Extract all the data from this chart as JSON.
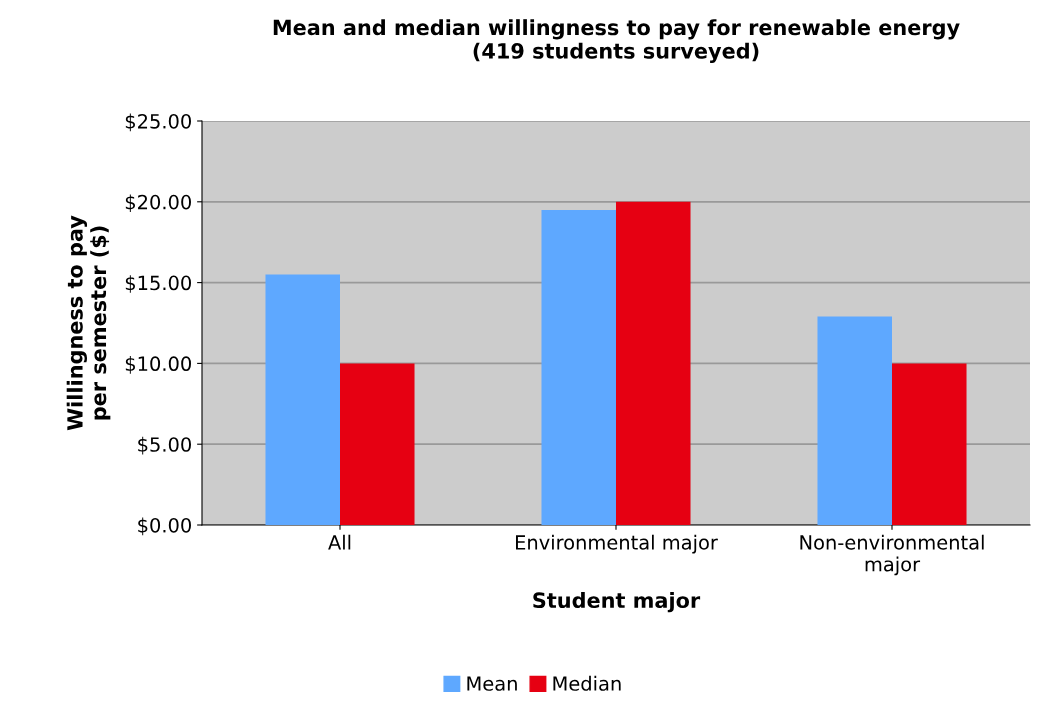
{
  "chart_data": {
    "type": "bar",
    "title": "Mean and median willingness to pay for renewable energy\n(419 students surveyed)",
    "xlabel": "Student major",
    "ylabel": "Willingness to pay\nper semester ($)",
    "categories": [
      "All",
      "Environmental major",
      "Non-environmental\nmajor"
    ],
    "series": [
      {
        "name": "Mean",
        "color": "#5ea8ff",
        "values": [
          15.5,
          19.5,
          12.9
        ]
      },
      {
        "name": "Median",
        "color": "#e60012",
        "values": [
          10,
          20,
          10
        ]
      }
    ],
    "ylim": [
      0,
      25
    ],
    "yticks": [
      {
        "value": 0,
        "label": "$0.00"
      },
      {
        "value": 5,
        "label": "$5.00"
      },
      {
        "value": 10,
        "label": "$10.00"
      },
      {
        "value": 15,
        "label": "$15.00"
      },
      {
        "value": 20,
        "label": "$20.00"
      },
      {
        "value": 25,
        "label": "$25.00"
      }
    ],
    "grid": "y",
    "legend": "bottom"
  }
}
